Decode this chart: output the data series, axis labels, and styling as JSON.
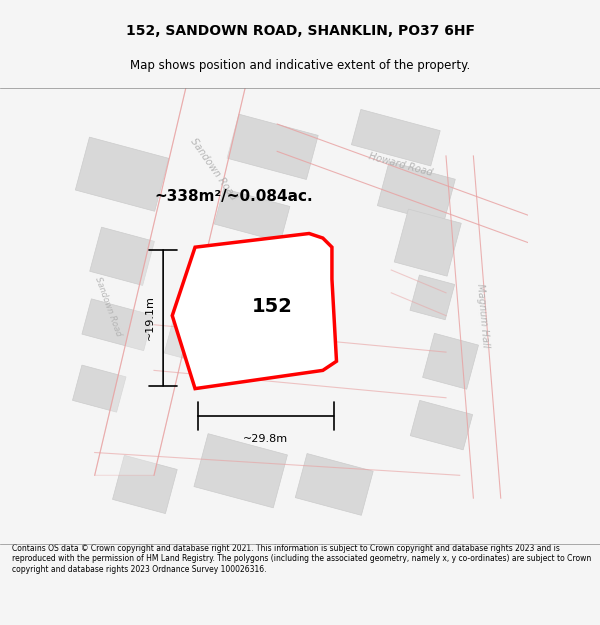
{
  "title": "152, SANDOWN ROAD, SHANKLIN, PO37 6HF",
  "subtitle": "Map shows position and indicative extent of the property.",
  "footer": "Contains OS data © Crown copyright and database right 2021. This information is subject to Crown copyright and database rights 2023 and is reproduced with the permission of HM Land Registry. The polygons (including the associated geometry, namely x, y co-ordinates) are subject to Crown copyright and database rights 2023 Ordnance Survey 100026316.",
  "bg_color": "#f5f5f5",
  "map_bg": "#ffffff",
  "area_label": "~338m²/~0.084ac.",
  "number_label": "152",
  "width_label": "~29.8m",
  "height_label": "~19.1m",
  "property_color": "#ff0000",
  "building_fill": "#d8d8d8",
  "road_line_color": "#e8a0a0",
  "road_label_color": "#b0b0b0"
}
